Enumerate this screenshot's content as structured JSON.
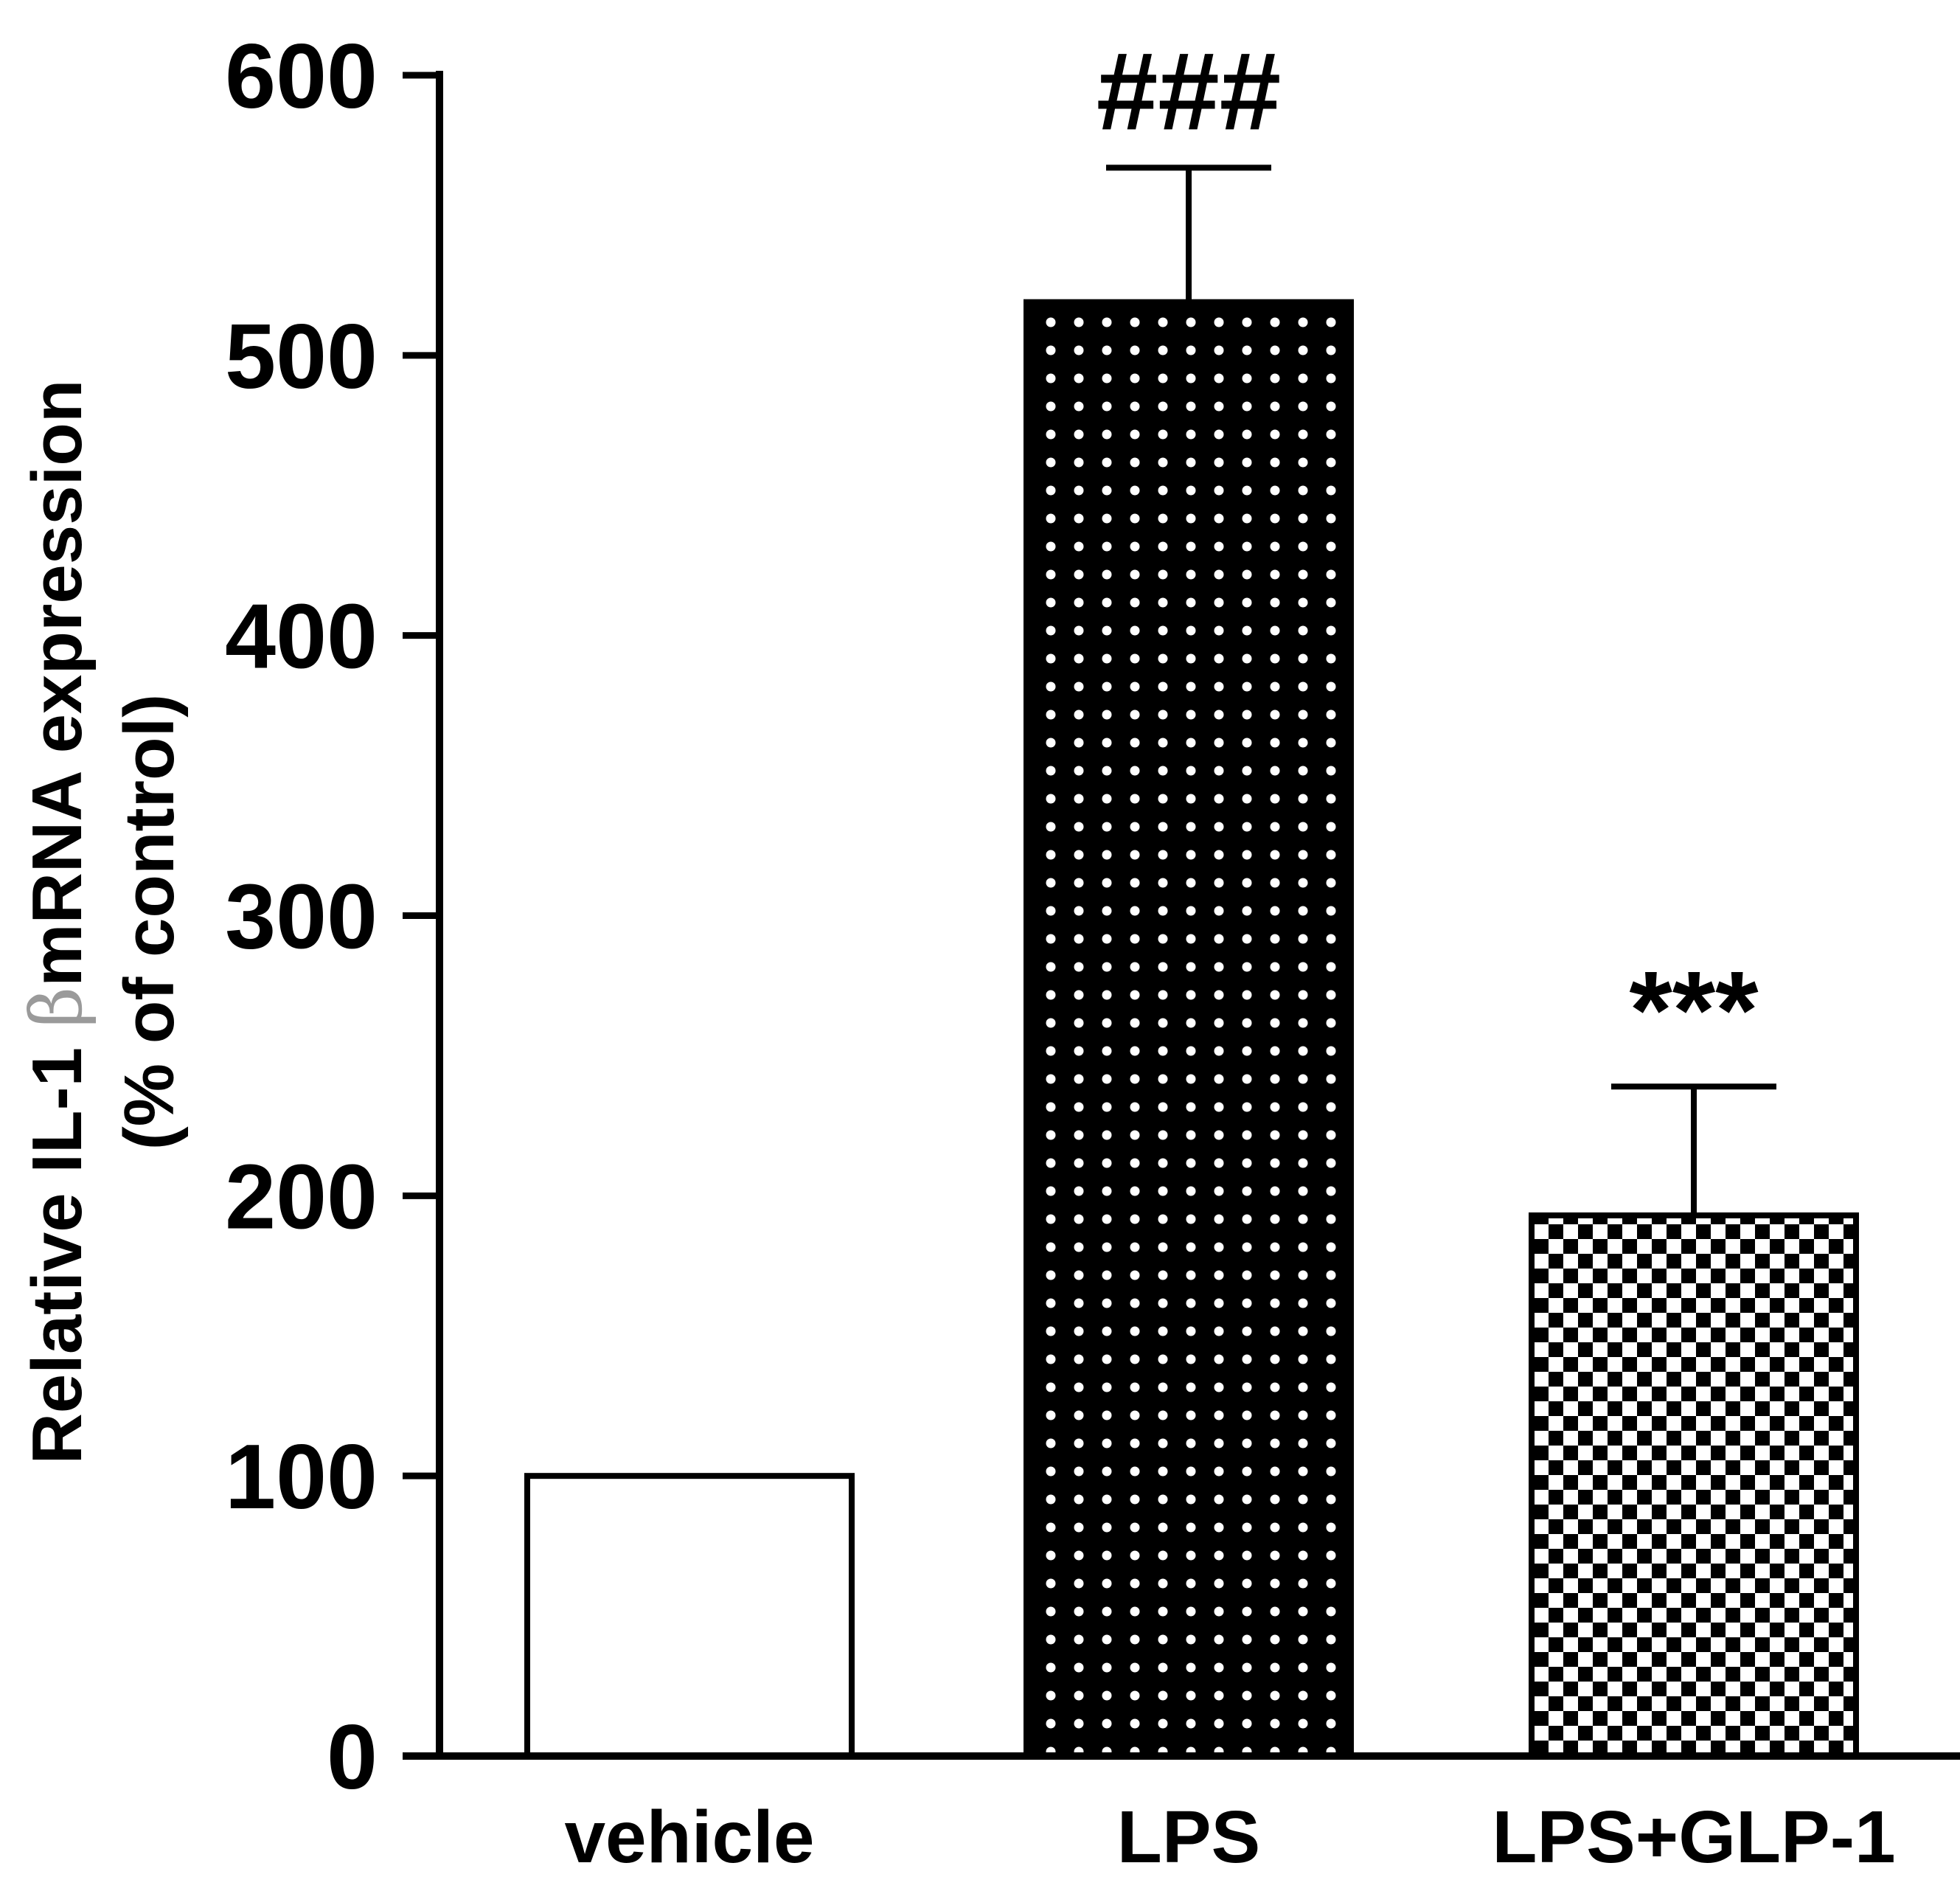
{
  "chart_data": {
    "type": "bar",
    "title": "",
    "categories": [
      "vehicle",
      "LPS",
      "LPS+GLP-1"
    ],
    "values": [
      100,
      519,
      193
    ],
    "errors": [
      0,
      48,
      46
    ],
    "patterns": [
      "none",
      "dots",
      "checker"
    ],
    "annotations": [
      "",
      "###",
      "***"
    ],
    "xlabel": "",
    "ylabel_line1_prefix": "Relative IL-1 ",
    "ylabel_line1_greek": "β",
    "ylabel_line1_suffix": "mRNA expression",
    "ylabel_line2": "(% of control)",
    "ylim": [
      0,
      600
    ],
    "yticks": [
      0,
      100,
      200,
      300,
      400,
      500,
      600
    ],
    "grid": false,
    "legend": "none"
  },
  "colors": {
    "axis": "#000000",
    "bar_fill_vehicle": "#ffffff",
    "pattern_dark": "#000000",
    "pattern_light": "#ffffff",
    "beta_symbol": "#9a9a9a"
  }
}
